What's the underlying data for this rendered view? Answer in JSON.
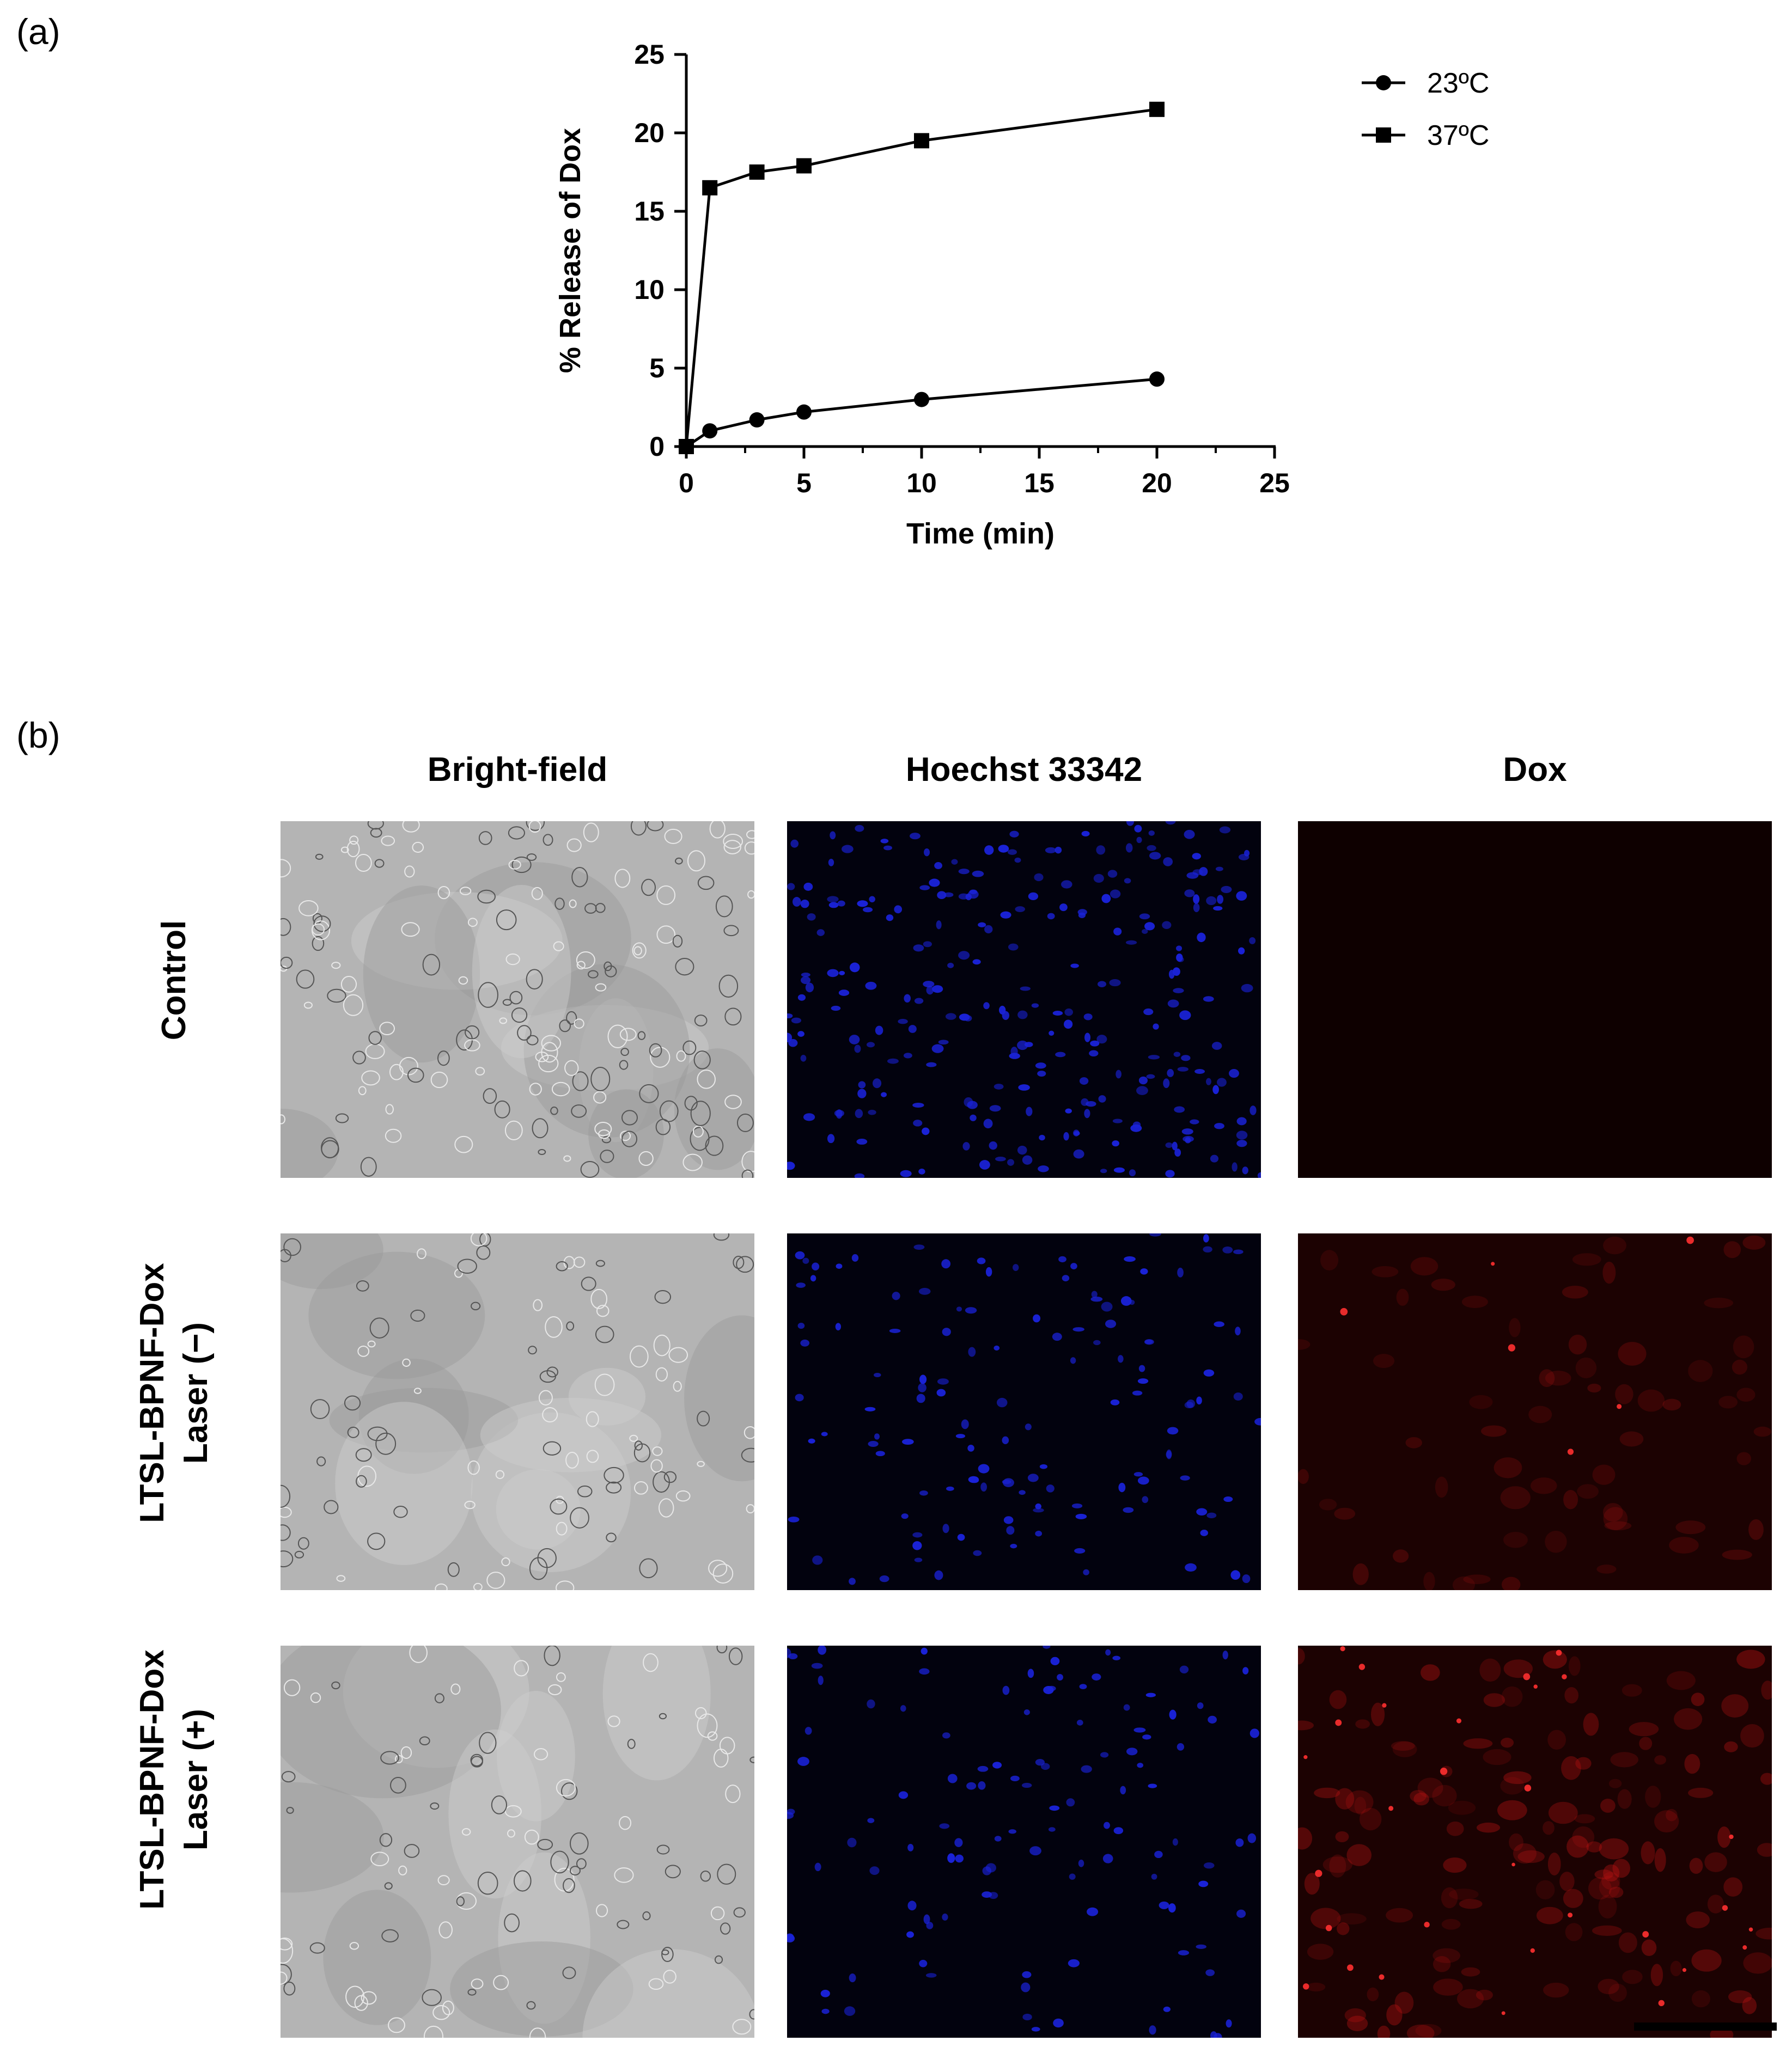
{
  "panel_a_label": "(a)",
  "panel_b_label": "(b)",
  "chart_data": {
    "type": "line",
    "title": "",
    "xlabel": "Time (min)",
    "ylabel": "% Release of Dox",
    "xlim": [
      0,
      25
    ],
    "ylim": [
      0,
      25
    ],
    "x_ticks": [
      "0",
      "5",
      "10",
      "15",
      "20",
      "25"
    ],
    "y_ticks": [
      "0",
      "5",
      "10",
      "15",
      "20",
      "25"
    ],
    "grid": false,
    "legend_position": "top-right",
    "series": [
      {
        "name": "23ºC",
        "marker": "circle",
        "color": "#000000",
        "x": [
          0,
          1,
          3,
          5,
          10,
          20
        ],
        "y": [
          0,
          1.0,
          1.7,
          2.2,
          3.0,
          4.3
        ]
      },
      {
        "name": "37ºC",
        "marker": "square",
        "color": "#000000",
        "x": [
          0,
          1,
          3,
          5,
          10,
          20
        ],
        "y": [
          0,
          16.5,
          17.5,
          17.9,
          19.5,
          21.5
        ]
      }
    ]
  },
  "panel_b": {
    "columns": [
      "Bright-field",
      "Hoechst 33342",
      "Dox"
    ],
    "rows": [
      {
        "line1": "Control",
        "line2": ""
      },
      {
        "line1": "LTSL-BPNF-Dox",
        "line2": "Laser (−)"
      },
      {
        "line1": "LTSL-BPNF-Dox",
        "line2": "Laser (+)"
      }
    ],
    "colors": {
      "bright_field": "#b4b4b4",
      "hoechst": "#1a22d8",
      "dox": "#c81414",
      "dark_bg": "#000000"
    }
  }
}
